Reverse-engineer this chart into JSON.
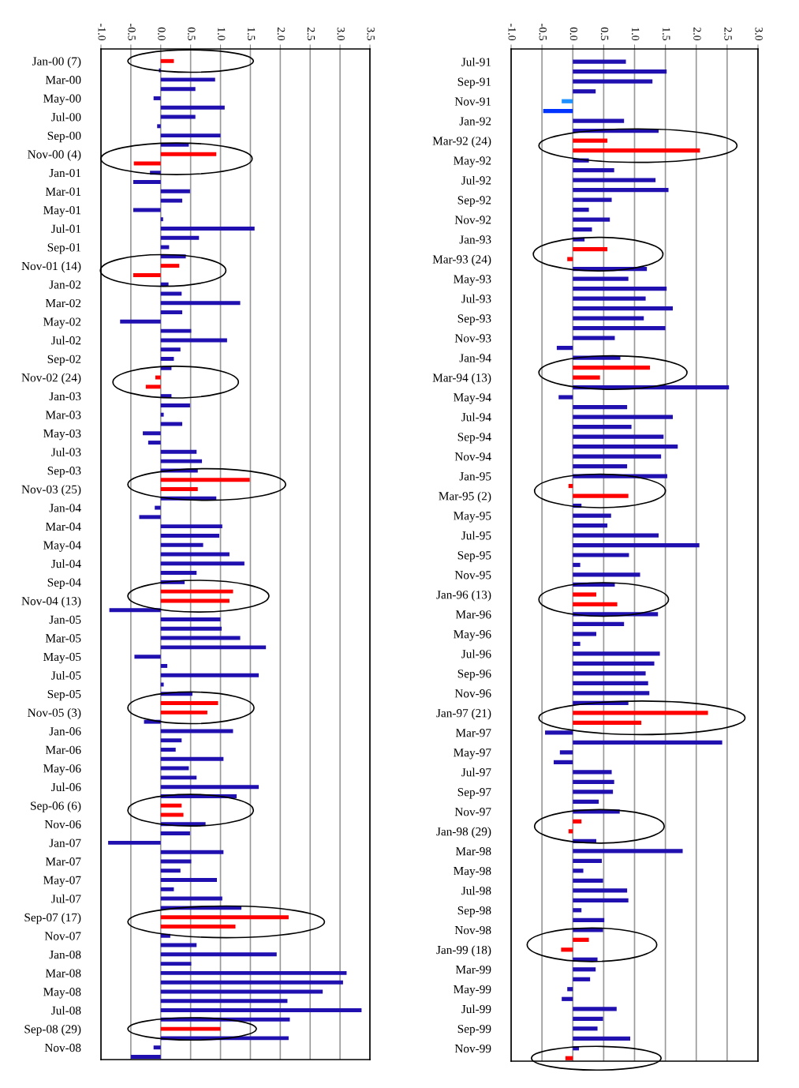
{
  "chart_data": [
    {
      "type": "bar",
      "orientation": "horizontal",
      "grid": "x",
      "categories": [
        "Jan-00 (7)",
        null,
        "Mar-00",
        null,
        "May-00",
        null,
        "Jul-00",
        null,
        "Sep-00",
        null,
        "Nov-00 (4)",
        null,
        "Jan-01",
        null,
        "Mar-01",
        null,
        "May-01",
        null,
        "Jul-01",
        null,
        "Sep-01",
        null,
        "Nov-01 (14)",
        null,
        "Jan-02",
        null,
        "Mar-02",
        null,
        "May-02",
        null,
        "Jul-02",
        null,
        "Sep-02",
        null,
        "Nov-02 (24)",
        null,
        "Jan-03",
        null,
        "Mar-03",
        null,
        "May-03",
        null,
        "Jul-03",
        null,
        "Sep-03",
        null,
        "Nov-03 (25)",
        null,
        "Jan-04",
        null,
        "Mar-04",
        null,
        "May-04",
        null,
        "Jul-04",
        null,
        "Sep-04",
        null,
        "Nov-04 (13)",
        null,
        "Jan-05",
        null,
        "Mar-05",
        null,
        "May-05",
        null,
        "Jul-05",
        null,
        "Sep-05",
        null,
        "Nov-05 (3)",
        null,
        "Jan-06",
        null,
        "Mar-06",
        null,
        "May-06",
        null,
        "Jul-06",
        null,
        "Sep-06 (6)",
        null,
        "Nov-06",
        null,
        "Jan-07",
        null,
        "Mar-07",
        null,
        "May-07",
        null,
        "Jul-07",
        null,
        "Sep-07 (17)",
        null,
        "Nov-07",
        null,
        "Jan-08",
        null,
        "Mar-08",
        null,
        "May-08",
        null,
        "Jul-08",
        null,
        "Sep-08 (29)",
        null,
        "Nov-08",
        null
      ],
      "values": [
        0.22,
        -0.03,
        0.91,
        0.58,
        -0.12,
        1.07,
        0.58,
        -0.06,
        1.0,
        0.47,
        0.93,
        -0.45,
        -0.18,
        -0.46,
        0.49,
        0.36,
        -0.46,
        0.04,
        1.57,
        0.64,
        0.14,
        0.42,
        0.31,
        -0.46,
        0.13,
        0.35,
        1.33,
        0.36,
        -0.68,
        0.51,
        1.11,
        0.33,
        0.22,
        0.18,
        -0.09,
        -0.25,
        0.18,
        0.49,
        0.05,
        0.36,
        -0.3,
        -0.21,
        0.6,
        0.69,
        0.62,
        1.49,
        0.62,
        0.93,
        -0.1,
        -0.36,
        1.03,
        0.98,
        0.71,
        1.15,
        1.4,
        0.6,
        0.4,
        1.21,
        1.15,
        -0.86,
        1.0,
        1.02,
        1.33,
        1.76,
        -0.44,
        0.11,
        1.64,
        0.05,
        0.53,
        0.96,
        0.78,
        -0.28,
        1.21,
        0.35,
        0.25,
        1.05,
        0.47,
        0.6,
        1.64,
        1.27,
        0.35,
        0.38,
        0.75,
        0.49,
        -0.88,
        1.05,
        0.51,
        0.33,
        0.94,
        0.22,
        1.03,
        1.35,
        2.14,
        1.25,
        0.16,
        0.6,
        1.94,
        0.51,
        3.11,
        3.05,
        2.71,
        2.12,
        3.36,
        2.16,
        1.0,
        2.14,
        -0.12,
        -0.5
      ],
      "colors": [
        "#ff0000",
        "#2010b0",
        "#2010b0",
        "#2010b0",
        "#2010b0",
        "#2010b0",
        "#2010b0",
        "#2010b0",
        "#2010b0",
        "#2010b0",
        "#ff0000",
        "#ff0000",
        "#2010b0",
        "#2010b0",
        "#2010b0",
        "#2010b0",
        "#2010b0",
        "#2010b0",
        "#2010b0",
        "#2010b0",
        "#2010b0",
        "#2010b0",
        "#ff0000",
        "#ff0000",
        "#2010b0",
        "#2010b0",
        "#2010b0",
        "#2010b0",
        "#2010b0",
        "#2010b0",
        "#2010b0",
        "#2010b0",
        "#2010b0",
        "#2010b0",
        "#ff0000",
        "#ff0000",
        "#2010b0",
        "#2010b0",
        "#2010b0",
        "#2010b0",
        "#2010b0",
        "#2010b0",
        "#2010b0",
        "#2010b0",
        "#2010b0",
        "#ff0000",
        "#ff0000",
        "#2010b0",
        "#2010b0",
        "#2010b0",
        "#2010b0",
        "#2010b0",
        "#2010b0",
        "#2010b0",
        "#2010b0",
        "#2010b0",
        "#2010b0",
        "#ff0000",
        "#ff0000",
        "#2010b0",
        "#2010b0",
        "#2010b0",
        "#2010b0",
        "#2010b0",
        "#2010b0",
        "#2010b0",
        "#2010b0",
        "#2010b0",
        "#2010b0",
        "#ff0000",
        "#ff0000",
        "#2010b0",
        "#2010b0",
        "#2010b0",
        "#2010b0",
        "#2010b0",
        "#2010b0",
        "#2010b0",
        "#2010b0",
        "#2010b0",
        "#ff0000",
        "#ff0000",
        "#2010b0",
        "#2010b0",
        "#2010b0",
        "#2010b0",
        "#2010b0",
        "#2010b0",
        "#2010b0",
        "#2010b0",
        "#2010b0",
        "#2010b0",
        "#ff0000",
        "#ff0000",
        "#2010b0",
        "#2010b0",
        "#2010b0",
        "#2010b0",
        "#2010b0",
        "#2010b0",
        "#2010b0",
        "#2010b0",
        "#2010b0",
        "#2010b0",
        "#ff0000",
        "#2010b0",
        "#2010b0",
        "#2010b0"
      ],
      "xlim": [
        -1.0,
        3.5
      ],
      "xticks": [
        {
          "value": -1.0,
          "label": "-1.0"
        },
        {
          "value": -0.5,
          "label": "-0.5"
        },
        {
          "value": 0,
          "label": "0.0"
        },
        {
          "value": 0.5,
          "label": "0.5"
        },
        {
          "value": 1.0,
          "label": "1.0"
        },
        {
          "value": 1.5,
          "label": "1.5"
        },
        {
          "value": 2.0,
          "label": "2.0"
        },
        {
          "value": 2.5,
          "label": "2.5"
        },
        {
          "value": 3.0,
          "label": "3.0"
        },
        {
          "value": 3.5,
          "label": "3.5"
        }
      ]
    },
    {
      "type": "bar",
      "orientation": "horizontal",
      "grid": "x",
      "categories": [
        "Jul-91",
        null,
        "Sep-91",
        null,
        "Nov-91",
        null,
        "Jan-92",
        null,
        "Mar-92 (24)",
        null,
        "May-92",
        null,
        "Jul-92",
        null,
        "Sep-92",
        null,
        "Nov-92",
        null,
        "Jan-93",
        null,
        "Mar-93 (24)",
        null,
        "May-93",
        null,
        "Jul-93",
        null,
        "Sep-93",
        null,
        "Nov-93",
        null,
        "Jan-94",
        null,
        "Mar-94 (13)",
        null,
        "May-94",
        null,
        "Jul-94",
        null,
        "Sep-94",
        null,
        "Nov-94",
        null,
        "Jan-95",
        null,
        "Mar-95 (2)",
        null,
        "May-95",
        null,
        "Jul-95",
        null,
        "Sep-95",
        null,
        "Nov-95",
        null,
        "Jan-96 (13)",
        null,
        "Mar-96",
        null,
        "May-96",
        null,
        "Jul-96",
        null,
        "Sep-96",
        null,
        "Nov-96",
        null,
        "Jan-97 (21)",
        null,
        "Mar-97",
        null,
        "May-97",
        null,
        "Jul-97",
        null,
        "Sep-97",
        null,
        "Nov-97",
        null,
        "Jan-98 (29)",
        null,
        "Mar-98",
        null,
        "May-98",
        null,
        "Jul-98",
        null,
        "Sep-98",
        null,
        "Nov-98",
        null,
        "Jan-99 (18)",
        null,
        "Mar-99",
        null,
        "May-99",
        null,
        "Jul-99",
        null,
        "Sep-99",
        null,
        "Nov-99",
        null
      ],
      "values": [
        0.86,
        1.52,
        1.29,
        0.37,
        -0.18,
        -0.48,
        0.83,
        1.39,
        0.56,
        2.06,
        0.26,
        0.67,
        1.34,
        1.55,
        0.63,
        0.26,
        0.6,
        0.31,
        0.19,
        0.56,
        -0.09,
        1.2,
        0.9,
        1.52,
        1.18,
        1.62,
        1.15,
        1.5,
        0.68,
        -0.26,
        0.77,
        1.25,
        0.44,
        2.53,
        -0.23,
        0.88,
        1.62,
        0.95,
        1.47,
        1.7,
        1.43,
        0.88,
        1.53,
        -0.07,
        0.9,
        0.14,
        0.62,
        0.56,
        1.39,
        2.05,
        0.91,
        0.12,
        1.09,
        0.68,
        0.38,
        0.72,
        1.38,
        0.83,
        0.38,
        0.12,
        1.41,
        1.32,
        1.18,
        1.22,
        1.24,
        0.9,
        2.19,
        1.11,
        -0.45,
        2.42,
        -0.21,
        -0.31,
        0.63,
        0.67,
        0.65,
        0.42,
        0.76,
        0.14,
        -0.07,
        0.38,
        1.78,
        0.47,
        0.17,
        0.49,
        0.88,
        0.9,
        0.14,
        0.51,
        0.49,
        0.26,
        -0.19,
        0.4,
        0.37,
        0.28,
        -0.09,
        -0.18,
        0.71,
        0.49,
        0.4,
        0.93,
        0.1,
        -0.12
      ],
      "colors": [
        "#2010b0",
        "#2010b0",
        "#2010b0",
        "#2010b0",
        "#1e90ff",
        "#0033ff",
        "#2010b0",
        "#2010b0",
        "#ff0000",
        "#ff0000",
        "#2010b0",
        "#2010b0",
        "#2010b0",
        "#2010b0",
        "#2010b0",
        "#2010b0",
        "#2010b0",
        "#2010b0",
        "#2010b0",
        "#ff0000",
        "#ff0000",
        "#2010b0",
        "#2010b0",
        "#2010b0",
        "#2010b0",
        "#2010b0",
        "#2010b0",
        "#2010b0",
        "#2010b0",
        "#2010b0",
        "#2010b0",
        "#ff0000",
        "#ff0000",
        "#2010b0",
        "#2010b0",
        "#2010b0",
        "#2010b0",
        "#2010b0",
        "#2010b0",
        "#2010b0",
        "#2010b0",
        "#2010b0",
        "#2010b0",
        "#ff0000",
        "#ff0000",
        "#2010b0",
        "#2010b0",
        "#2010b0",
        "#2010b0",
        "#2010b0",
        "#2010b0",
        "#2010b0",
        "#2010b0",
        "#2010b0",
        "#ff0000",
        "#ff0000",
        "#2010b0",
        "#2010b0",
        "#2010b0",
        "#2010b0",
        "#2010b0",
        "#2010b0",
        "#2010b0",
        "#2010b0",
        "#2010b0",
        "#2010b0",
        "#ff0000",
        "#ff0000",
        "#2010b0",
        "#2010b0",
        "#2010b0",
        "#2010b0",
        "#2010b0",
        "#2010b0",
        "#2010b0",
        "#2010b0",
        "#2010b0",
        "#ff0000",
        "#ff0000",
        "#2010b0",
        "#2010b0",
        "#2010b0",
        "#2010b0",
        "#2010b0",
        "#2010b0",
        "#2010b0",
        "#2010b0",
        "#2010b0",
        "#2010b0",
        "#ff0000",
        "#ff0000",
        "#2010b0",
        "#2010b0",
        "#2010b0",
        "#2010b0",
        "#2010b0",
        "#2010b0",
        "#2010b0",
        "#2010b0",
        "#2010b0",
        "#2010b0",
        "#ff0000"
      ],
      "xlim": [
        -1.0,
        3.0
      ],
      "xticks": [
        {
          "value": -1.0,
          "label": "-1.0"
        },
        {
          "value": -0.5,
          "label": "-0.5"
        },
        {
          "value": 0,
          "label": "0.0"
        },
        {
          "value": 0.5,
          "label": "0.5"
        },
        {
          "value": 1.0,
          "label": "1.0"
        },
        {
          "value": 1.5,
          "label": "1.5"
        },
        {
          "value": 2.0,
          "label": "2.0"
        },
        {
          "value": 2.5,
          "label": "2.5"
        },
        {
          "value": 3.0,
          "label": "3.0"
        }
      ]
    }
  ]
}
